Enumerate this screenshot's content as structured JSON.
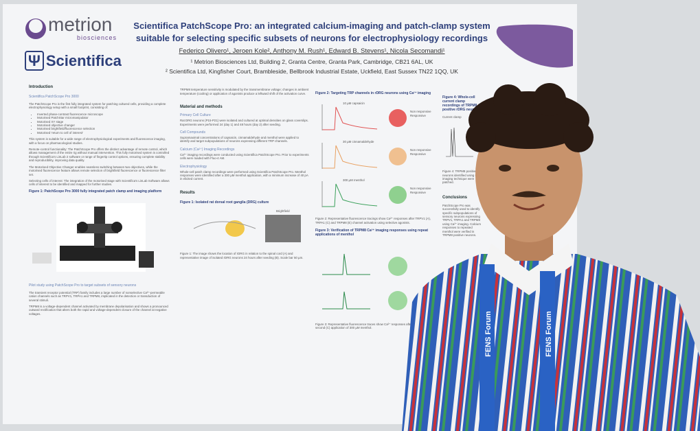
{
  "poster": {
    "logos": {
      "metrion": "metrion",
      "metrion_sub": "biosciences",
      "scientifica": "Scientifica"
    },
    "title": [
      "Scientifica PatchScope Pro: an integrated calcium-imaging and patch-clamp system",
      "suitable for selecting specific subsets of neurons for electrophysiology recordings"
    ],
    "authors": "Federico Olivero¹, Jeroen Kole², Anthony M. Rush¹, Edward B. Stevens¹, Nicola Secomandi¹",
    "affiliations": [
      "¹ Metrion Biosciences Ltd, Building 2, Granta Centre, Granta Park, Cambridge, CB21 6AL, UK",
      "² Scientifica Ltd, Kingfisher Court, Brambleside, Bellbrook Industrial Estate, Uckfield, East Sussex TN22 1QQ, UK"
    ],
    "col1": {
      "heading": "Introduction",
      "sub": "Scientifica PatchScope Pro 3000",
      "intro": "The PatchScope Pro is the first fully integrated system for patching cultured cells, providing a complete electrophysiology setup with a small footprint, consisting of:",
      "bullets": [
        "Inverted phase-contrast fluorescence microscope",
        "Motorised PatchStar micromanipulator",
        "Motorised XY stage",
        "Motorised objective changer",
        "Motorised brightfield/fluorescence selection",
        "Motorised 'return to cell of interest'"
      ],
      "paras": [
        "This system is suitable for a wide range of electrophysiological experiments and fluorescence imaging, with a focus on pharmacological studies.",
        "Remote-control functionality: The PatchScope Pro offers the distinct advantage of remote control, which allows management of the entire rig without manual intervention. This fully motorised system is controlled through Scientifica's LinLab 2 software or range of fingertip control options, ensuring complete stability and reproducibility, improving data quality.",
        "The Motorised Objective Changer enables seamless switching between two objectives, while the motorised fluorescence feature allows remote selection of brightfield fluorescence or fluorescence filter set.",
        "Selecting cells of interest: The integration of the motorised stage with Scientifica's LinLab Software allows cells of interest to be identified and mapped for further studies."
      ],
      "fig1": "Figure 1: PatchScope Pro 3000 fully integrated patch clamp and imaging platform",
      "pilot": "Pilot study using PatchScope Pro to target subsets of sensory neurons",
      "paras2": [
        "The transient receptor potential (TRP) family includes a large number of nonselective Ca²⁺-permeable cation channels such as TRPV1, TRPA1 and TRPM8, implicated in the detection or transduction of several stimuli.",
        "TRPM8 is a voltage-dependent channel activated by membrane depolarisation and shows a pronounced outward rectification that alters both the rapid and voltage-dependent closure of the channel at negative voltages."
      ]
    },
    "col2": {
      "intro": "TRPM8 temperature sensitivity is modulated by the transmembrane voltage; changes in ambient temperature (cooling) or application of agonists produce a leftward shift of the activation curve.",
      "heading": "Material and methods",
      "subs": [
        "Primary Cell Culture",
        "Cell Compounds",
        "Calcium (Ca²⁺) Imaging Recordings",
        "Electrophysiology"
      ],
      "paras": [
        "Rat DRG neurons (P15-P21) were isolated and cultured at optimal densities on glass coverslips. Experiments were performed 24 (day 1) and 48 hours (day 2) after seeding.",
        "Supramaximal concentrations of capsaicin, cinnamaldehyde and menthol were applied to identify and target subpopulations of neurons expressing different TRP channels.",
        "Ca²⁺ imaging recordings were conducted using Scientifica PatchScope Pro. Prior to experiments cells were loaded with Fluo-4 AM.",
        "Whole-cell patch clamp recordings were performed using Scientifica PatchScope Pro. Menthol responses were identified after a 300 µM menthol application, with a minimum increase of 40 pA in elicited current."
      ],
      "results": "Results",
      "figcap": "Figure 1: Isolated rat dorsal root ganglia (DRG) culture",
      "bf": "Brightfield",
      "caption": "Figure 1: The image shows the location of rDRG in relation to the spinal cord (A) and representative image of isolated rDRG neurons 24 hours after seeding (B). Scale bar 50 µm."
    },
    "col3": {
      "fig2": "Figure 2: Targeting TRP channels in rDRG neurons using Ca²⁺ imaging",
      "agonists": [
        "10 µM capsaicin",
        "30 µM cinnamaldehyde",
        "300 µM menthol"
      ],
      "legend": [
        "Non responsive",
        "Responsive"
      ],
      "caption2": "Figure 2: Representative fluorescence tracings show Ca²⁺ responses after TRPV1 (A), TRPA1 (C) and TRPM8 (E) channel activation using selective agonists.",
      "fig3": "Figure 3: Verification of TRPM8 Ca²⁺ imaging responses using repeat applications of menthol",
      "caption3": "Figure 3: Representative fluorescence traces show Ca²⁺ responses after first (A) and second (C) application of 300 µM menthol."
    },
    "col4": {
      "fig4": "Figure 4: Whole-cell current clamp recordings of TRPM8 positive rDRG neurons",
      "label": "Current clamp",
      "caption": "Figure 4: TRPM8 positive neurons identified using Ca²⁺ imaging technique were patched.",
      "heading": "Conclusions",
      "text": "PatchScope Pro was successfully used to identify specific subpopulations of sensory neurons expressing TRPV1, TRPA1 and TRPM8 using Ca²⁺ imaging. Calcium responses to repeated menthol were verified in TRPM8 positive neurons."
    }
  },
  "lanyard": "FENS Forum"
}
